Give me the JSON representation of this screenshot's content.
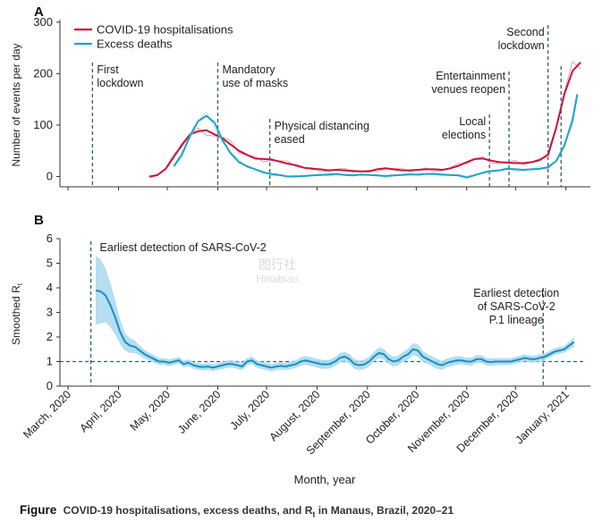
{
  "chart_data": [
    {
      "type": "line",
      "panel_label": "A",
      "title": "",
      "ylabel": "Number of events per day",
      "xlabel": "",
      "ylim": [
        -20,
        305
      ],
      "yticks": [
        0,
        100,
        200,
        300
      ],
      "x_range_days": [
        -5,
        321
      ],
      "x_unit": "days since 2020-03-01",
      "legend": "top-left",
      "grid": false,
      "series": [
        {
          "name": "COVID-19 hospitalisations",
          "color": "#c4143c",
          "raw_color": "#e68a9a",
          "x": [
            50,
            55,
            60,
            65,
            70,
            75,
            80,
            85,
            90,
            95,
            100,
            105,
            110,
            115,
            120,
            125,
            130,
            135,
            140,
            145,
            150,
            155,
            160,
            165,
            170,
            175,
            180,
            185,
            190,
            195,
            200,
            205,
            210,
            215,
            220,
            225,
            230,
            235,
            240,
            245,
            250,
            255,
            260,
            265,
            270,
            275,
            280,
            285,
            290,
            295,
            300,
            305,
            310,
            315
          ],
          "values": [
            0,
            3,
            15,
            38,
            62,
            82,
            88,
            90,
            82,
            74,
            62,
            50,
            42,
            35,
            34,
            33,
            29,
            25,
            22,
            17,
            15,
            14,
            12,
            13,
            12,
            11,
            10,
            10,
            14,
            16,
            14,
            12,
            12,
            13,
            14,
            14,
            13,
            16,
            21,
            28,
            34,
            35,
            31,
            28,
            27,
            26,
            26,
            28,
            32,
            43,
            95,
            160,
            205,
            222
          ]
        },
        {
          "name": "Excess deaths",
          "color": "#1aa3c9",
          "raw_color": "#9fd8e8",
          "x": [
            65,
            70,
            75,
            80,
            85,
            90,
            95,
            100,
            105,
            110,
            115,
            120,
            125,
            130,
            135,
            140,
            145,
            150,
            155,
            160,
            165,
            170,
            175,
            180,
            185,
            190,
            195,
            200,
            205,
            210,
            215,
            220,
            225,
            230,
            235,
            240,
            245,
            258,
            265,
            270,
            275,
            280,
            285,
            290,
            295,
            300,
            305,
            310,
            313
          ],
          "values": [
            20,
            42,
            80,
            108,
            118,
            105,
            70,
            45,
            28,
            20,
            14,
            8,
            5,
            3,
            0,
            0,
            1,
            2,
            3,
            4,
            5,
            3,
            2,
            4,
            3,
            2,
            1,
            2,
            3,
            4,
            4,
            5,
            5,
            4,
            3,
            2,
            -2,
            10,
            12,
            15,
            14,
            13,
            14,
            15,
            18,
            30,
            60,
            110,
            160
          ]
        }
      ],
      "annotations": [
        {
          "x": 15,
          "label": "First\nlockdown"
        },
        {
          "x": 92,
          "label": "Mandatory\nuse of masks"
        },
        {
          "x": 124,
          "label": "Physical distancing\neased"
        },
        {
          "x": 259,
          "label": "Local\nelections"
        },
        {
          "x": 271,
          "label": "Entertainment\nvenues reopen"
        },
        {
          "x": 295,
          "label": "Second\nlockdown"
        },
        {
          "x": 303,
          "label": ""
        }
      ]
    },
    {
      "type": "line",
      "panel_label": "B",
      "title": "",
      "ylabel": "Smoothed R",
      "ylabel_sub": "t",
      "xlabel": "Month, year",
      "ylim": [
        0,
        6
      ],
      "yticks": [
        0,
        1,
        2,
        3,
        4,
        5,
        6
      ],
      "x_range_days": [
        -5,
        321
      ],
      "grid": false,
      "reference_line": 1,
      "series": [
        {
          "name": "Smoothed Rt",
          "color": "#1a8fbf",
          "band_color": "#a8d8ee",
          "x": [
            17,
            20,
            23,
            26,
            29,
            32,
            35,
            38,
            41,
            44,
            47,
            50,
            53,
            56,
            59,
            62,
            65,
            68,
            71,
            74,
            77,
            80,
            83,
            86,
            89,
            92,
            95,
            98,
            101,
            104,
            107,
            110,
            113,
            116,
            119,
            122,
            125,
            128,
            131,
            134,
            137,
            140,
            143,
            146,
            149,
            152,
            155,
            158,
            161,
            164,
            167,
            170,
            173,
            176,
            179,
            182,
            185,
            188,
            191,
            194,
            197,
            200,
            203,
            206,
            209,
            212,
            215,
            218,
            221,
            224,
            227,
            230,
            233,
            236,
            239,
            242,
            245,
            248,
            251,
            254,
            257,
            260,
            263,
            266,
            269,
            272,
            275,
            278,
            281,
            284,
            287,
            290,
            293,
            296,
            299,
            302,
            305,
            308,
            311
          ],
          "values": [
            3.9,
            3.85,
            3.7,
            3.3,
            2.8,
            2.2,
            1.8,
            1.65,
            1.6,
            1.45,
            1.3,
            1.2,
            1.1,
            1.0,
            1.0,
            0.95,
            1.0,
            1.05,
            0.9,
            0.95,
            0.85,
            0.8,
            0.78,
            0.8,
            0.75,
            0.8,
            0.85,
            0.9,
            0.9,
            0.85,
            0.8,
            1.0,
            1.05,
            0.9,
            0.85,
            0.8,
            0.75,
            0.8,
            0.82,
            0.8,
            0.85,
            0.9,
            1.0,
            1.05,
            1.0,
            0.95,
            0.9,
            0.88,
            0.9,
            1.0,
            1.15,
            1.2,
            1.1,
            0.9,
            0.85,
            0.88,
            1.0,
            1.2,
            1.35,
            1.3,
            1.1,
            1.0,
            1.05,
            1.2,
            1.3,
            1.5,
            1.45,
            1.2,
            1.1,
            1.0,
            0.9,
            0.85,
            0.95,
            1.0,
            1.05,
            1.05,
            1.0,
            1.0,
            1.1,
            1.1,
            1.0,
            0.98,
            1.0,
            1.0,
            1.0,
            1.0,
            1.05,
            1.1,
            1.15,
            1.1,
            1.1,
            1.15,
            1.2,
            1.3,
            1.4,
            1.45,
            1.5,
            1.65,
            1.8
          ],
          "band_halfwidth": [
            1.4,
            1.3,
            1.1,
            0.9,
            0.7,
            0.5,
            0.35,
            0.3,
            0.25,
            0.2,
            0.18,
            0.16,
            0.15,
            0.14,
            0.14,
            0.14,
            0.14,
            0.14,
            0.14,
            0.14,
            0.14,
            0.14,
            0.14,
            0.14,
            0.14,
            0.14,
            0.15,
            0.15,
            0.15,
            0.15,
            0.15,
            0.15,
            0.15,
            0.15,
            0.15,
            0.15,
            0.15,
            0.15,
            0.15,
            0.15,
            0.15,
            0.16,
            0.17,
            0.18,
            0.18,
            0.18,
            0.18,
            0.18,
            0.18,
            0.18,
            0.2,
            0.2,
            0.2,
            0.2,
            0.2,
            0.2,
            0.2,
            0.2,
            0.22,
            0.22,
            0.2,
            0.2,
            0.2,
            0.2,
            0.22,
            0.25,
            0.25,
            0.22,
            0.2,
            0.2,
            0.2,
            0.18,
            0.18,
            0.18,
            0.18,
            0.16,
            0.16,
            0.16,
            0.16,
            0.16,
            0.15,
            0.15,
            0.15,
            0.14,
            0.14,
            0.14,
            0.14,
            0.14,
            0.14,
            0.14,
            0.14,
            0.14,
            0.14,
            0.14,
            0.14,
            0.14,
            0.14,
            0.16,
            0.2
          ]
        }
      ],
      "annotations": [
        {
          "x": 14,
          "label": "Earliest detection of SARS-CoV-2"
        },
        {
          "x": 292,
          "label": "Earliest detection\nof SARS-CoV-2\nP.1 lineage"
        }
      ]
    }
  ],
  "x_axis": {
    "xlabel": "Month, year",
    "ticks": [
      {
        "day": 0,
        "label": "March, 2020"
      },
      {
        "day": 31,
        "label": "April, 2020"
      },
      {
        "day": 61,
        "label": "May, 2020"
      },
      {
        "day": 92,
        "label": "June, 2020"
      },
      {
        "day": 122,
        "label": "July, 2020"
      },
      {
        "day": 153,
        "label": "August, 2020"
      },
      {
        "day": 184,
        "label": "September, 2020"
      },
      {
        "day": 214,
        "label": "October, 2020"
      },
      {
        "day": 245,
        "label": "November, 2020"
      },
      {
        "day": 275,
        "label": "December, 2020"
      },
      {
        "day": 306,
        "label": "January, 2021"
      }
    ]
  },
  "watermark": {
    "line1": "图行社",
    "line2": "Hinabian"
  },
  "caption": {
    "label": "Figure",
    "text_before": "COVID-19 hospitalisations, excess deaths, and R",
    "text_sub": "t",
    "text_after": " in Manaus, Brazil, 2020–21"
  }
}
